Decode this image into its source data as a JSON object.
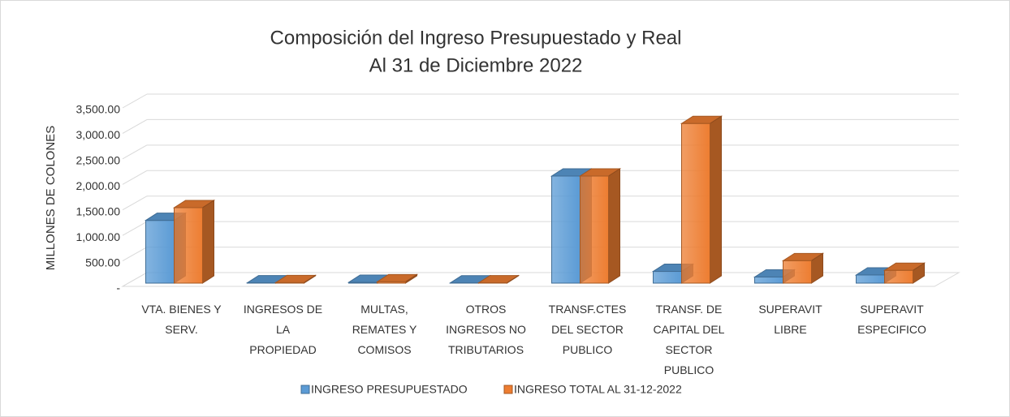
{
  "chart_data": {
    "type": "bar3d",
    "title": "Composición del Ingreso Presupuestado y Real",
    "subtitle": "Al 31 de Diciembre  2022",
    "y_label": "MILLONES DE COLONES",
    "categories": [
      "VTA. BIENES Y SERV.",
      "INGRESOS DE LA PROPIEDAD",
      "MULTAS, REMATES Y COMISOS",
      "OTROS INGRESOS NO TRIBUTARIOS",
      "TRANSF.CTES DEL SECTOR PUBLICO",
      "TRANSF. DE CAPITAL DEL SECTOR PUBLICO",
      "SUPERAVIT LIBRE",
      "SUPERAVIT ESPECIFICO"
    ],
    "series": [
      {
        "name": "INGRESO PRESUPUESTADO",
        "color": "#5b9bd5",
        "values": [
          1230,
          5,
          15,
          3,
          2100,
          230,
          120,
          160
        ]
      },
      {
        "name": "INGRESO TOTAL AL 31-12-2022",
        "color": "#ed7d31",
        "values": [
          1480,
          10,
          25,
          5,
          2100,
          3130,
          440,
          250
        ]
      }
    ],
    "ylim": [
      0,
      3500
    ],
    "yticks": [
      {
        "value": 0,
        "label": "-"
      },
      {
        "value": 500,
        "label": "500.00"
      },
      {
        "value": 1000,
        "label": "1,000.00"
      },
      {
        "value": 1500,
        "label": "1,500.00"
      },
      {
        "value": 2000,
        "label": "2,000.00"
      },
      {
        "value": 2500,
        "label": "2,500.00"
      },
      {
        "value": 3000,
        "label": "3,000.00"
      },
      {
        "value": 3500,
        "label": "3,500.00"
      }
    ],
    "grid": true,
    "legend": "bottom"
  }
}
